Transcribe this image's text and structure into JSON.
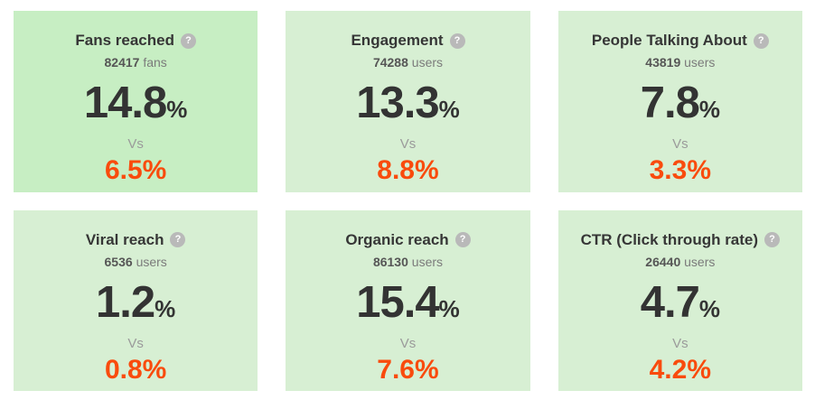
{
  "colors": {
    "page_bg": "#ffffff",
    "card_bg": "#d7efd3",
    "card_bg_highlight": "#c7eec3",
    "title": "#363636",
    "value": "#333333",
    "count": "#565656",
    "unit": "#7b7b7b",
    "vs": "#9b9b9b",
    "orange": "#f94b0d",
    "help_bg": "#b9b9b9",
    "help_glyph": "#ffffff"
  },
  "help_icon_glyph": "?",
  "vs_label": "Vs",
  "percent_sign": "%",
  "cards": [
    {
      "title": "Fans reached",
      "count": "82417",
      "unit": "fans",
      "value": "14.8",
      "previous": "6.5",
      "highlight": true
    },
    {
      "title": "Engagement",
      "count": "74288",
      "unit": "users",
      "value": "13.3",
      "previous": "8.8",
      "highlight": false
    },
    {
      "title": "People Talking About",
      "count": "43819",
      "unit": "users",
      "value": "7.8",
      "previous": "3.3",
      "highlight": false
    },
    {
      "title": "Viral reach",
      "count": "6536",
      "unit": "users",
      "value": "1.2",
      "previous": "0.8",
      "highlight": false
    },
    {
      "title": "Organic reach",
      "count": "86130",
      "unit": "users",
      "value": "15.4",
      "previous": "7.6",
      "highlight": false
    },
    {
      "title": "CTR (Click through rate)",
      "count": "26440",
      "unit": "users",
      "value": "4.7",
      "previous": "4.2",
      "highlight": false
    }
  ]
}
